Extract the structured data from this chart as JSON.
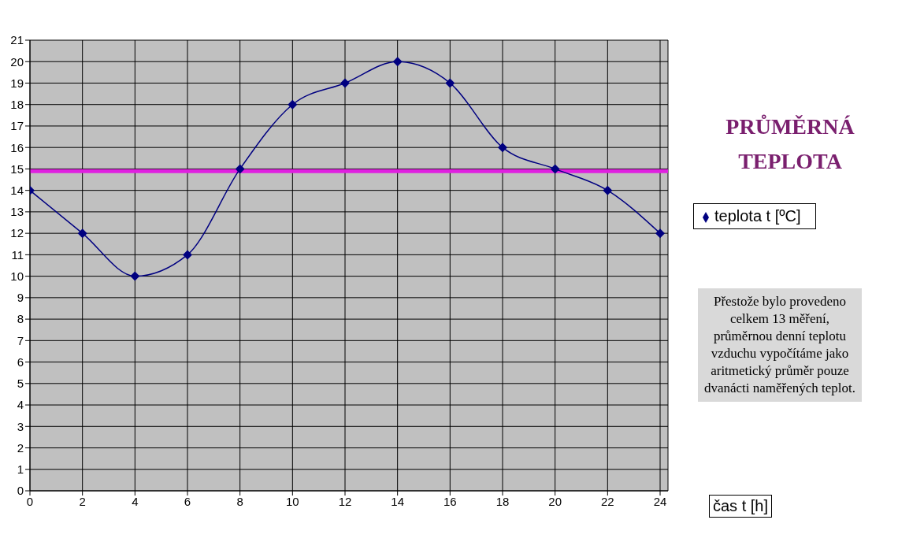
{
  "chart_data": {
    "type": "line",
    "xlabel": "čas t [h]",
    "x": [
      0,
      2,
      4,
      6,
      8,
      10,
      12,
      14,
      16,
      18,
      20,
      22,
      24
    ],
    "series": [
      {
        "name": "teplota  t  [ºC]",
        "color": "#000080",
        "values": [
          14,
          12,
          10,
          11,
          15,
          18,
          19,
          20,
          19,
          16,
          15,
          14,
          12
        ]
      }
    ],
    "xlim": [
      0,
      24.3
    ],
    "xticks": [
      0,
      2,
      4,
      6,
      8,
      10,
      12,
      14,
      16,
      18,
      20,
      22,
      24
    ],
    "ylim": [
      0,
      21
    ],
    "yticks": [
      0,
      1,
      2,
      3,
      4,
      5,
      6,
      7,
      8,
      9,
      10,
      11,
      12,
      13,
      14,
      15,
      16,
      17,
      18,
      19,
      20,
      21
    ],
    "ref_lines": [
      {
        "axis": "y",
        "value": 14.9,
        "label": "PRŮMĚRNÁ TEPLOTA",
        "color": "#e020e0"
      }
    ],
    "annotations": [
      "Přestože bylo provedeno celkem 13 měření, průměrnou denní teplotu vzduchu vypočítáme jako aritmetický průměr pouze dvanácti naměřených teplot."
    ],
    "grid": true,
    "legend": "right",
    "marker": "diamond",
    "line_style": "solid"
  }
}
